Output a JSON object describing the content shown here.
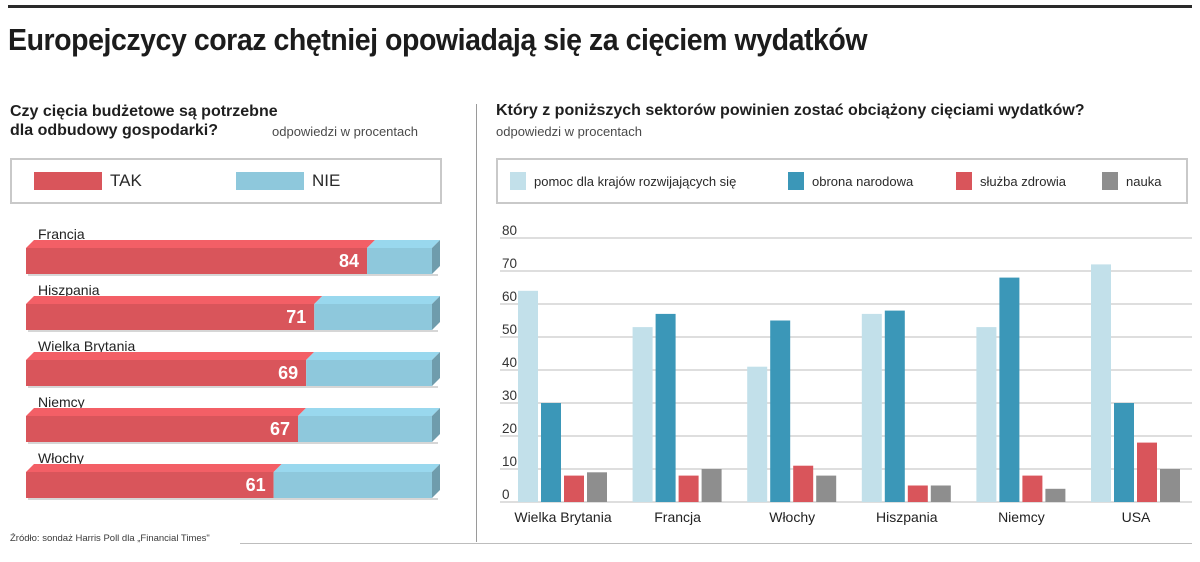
{
  "title": "Europejczycy coraz chętniej opowiadają się za cięciem wydatków",
  "source": "Źródło: sondaż Harris Poll dla „Financial Times\"",
  "colors": {
    "tak": "#d9555b",
    "nie": "#8ec8dc",
    "pomoc": "#c2e0ea",
    "obrona": "#3b97b8",
    "zdrowie": "#d9555b",
    "nauka": "#8e8e8e"
  },
  "chart_data": [
    {
      "type": "bar",
      "orientation": "horizontal",
      "stacked": true,
      "title": "Czy cięcia budżetowe są potrzebne\ndla odbudowy gospodarki?",
      "subtitle": "odpowiedzi w procentach",
      "categories": [
        "Francja",
        "Hiszpania",
        "Wielka Brytania",
        "Niemcy",
        "Włochy"
      ],
      "series": [
        {
          "name": "TAK",
          "values": [
            84,
            71,
            69,
            67,
            61
          ]
        },
        {
          "name": "NIE",
          "values": [
            16,
            29,
            31,
            33,
            39
          ]
        }
      ],
      "xlim": [
        0,
        100
      ],
      "legend": "top"
    },
    {
      "type": "bar",
      "title": "Który z poniższych sektorów powinien zostać obciążony cięciami wydatków?",
      "subtitle": "odpowiedzi w procentach",
      "categories": [
        "Wielka Brytania",
        "Francja",
        "Włochy",
        "Hiszpania",
        "Niemcy",
        "USA"
      ],
      "series": [
        {
          "name": "pomoc dla krajów rozwijających się",
          "values": [
            64,
            53,
            41,
            57,
            53,
            72
          ]
        },
        {
          "name": "obrona narodowa",
          "values": [
            30,
            57,
            55,
            58,
            68,
            30
          ]
        },
        {
          "name": "służba zdrowia",
          "values": [
            8,
            8,
            11,
            5,
            8,
            18
          ]
        },
        {
          "name": "nauka",
          "values": [
            9,
            10,
            8,
            5,
            4,
            10
          ]
        }
      ],
      "yticks": [
        "0",
        "10",
        "20",
        "30",
        "40",
        "50",
        "60",
        "70",
        "80"
      ],
      "ylim": [
        0,
        80
      ],
      "grid": true,
      "legend": "top"
    }
  ]
}
